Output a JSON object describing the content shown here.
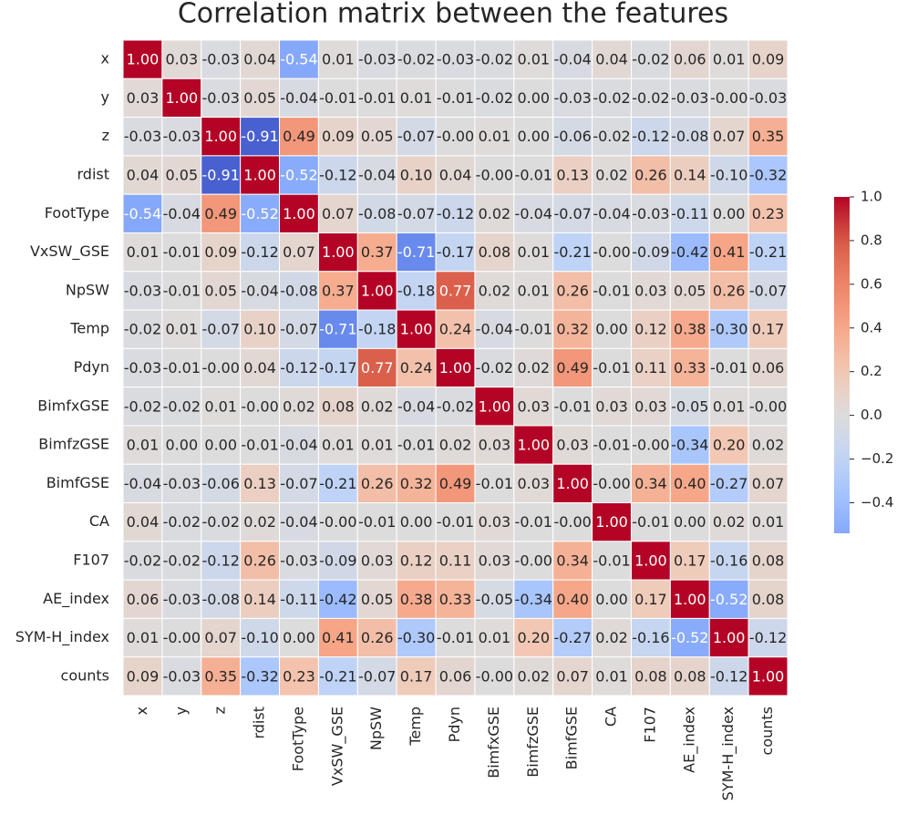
{
  "chart_data": {
    "type": "heatmap",
    "title": "Correlation matrix between the features",
    "rows": [
      "x",
      "y",
      "z",
      "rdist",
      "FootType",
      "VxSW_GSE",
      "NpSW",
      "Temp",
      "Pdyn",
      "BimfxGSE",
      "BimfzGSE",
      "BimfGSE",
      "CA",
      "F107",
      "AE_index",
      "SYM-H_index",
      "counts"
    ],
    "columns": [
      "x",
      "y",
      "z",
      "rdist",
      "FootType",
      "VxSW_GSE",
      "NpSW",
      "Temp",
      "Pdyn",
      "BimfxGSE",
      "BimfzGSE",
      "BimfGSE",
      "CA",
      "F107",
      "AE_index",
      "SYM-H_index",
      "counts"
    ],
    "values": [
      [
        1,
        0.03,
        -0.03,
        0.04,
        -0.54,
        0.01,
        -0.03,
        -0.02,
        -0.03,
        -0.02,
        0.01,
        -0.04,
        0.04,
        -0.02,
        0.06,
        0.01,
        0.09
      ],
      [
        0.03,
        1,
        -0.03,
        0.05,
        -0.04,
        -0.01,
        -0.01,
        0.01,
        -0.01,
        -0.02,
        0,
        -0.03,
        -0.02,
        -0.02,
        -0.03,
        0,
        -0.03
      ],
      [
        -0.03,
        -0.03,
        1,
        -0.91,
        0.49,
        0.09,
        0.05,
        -0.07,
        0,
        0.01,
        0,
        -0.06,
        -0.02,
        -0.12,
        -0.08,
        0.07,
        0.35
      ],
      [
        0.04,
        0.05,
        -0.91,
        1,
        -0.52,
        -0.12,
        -0.04,
        0.1,
        0.04,
        0,
        -0.01,
        0.13,
        0.02,
        0.26,
        0.14,
        -0.1,
        -0.32
      ],
      [
        -0.54,
        -0.04,
        0.49,
        -0.52,
        1,
        0.07,
        -0.08,
        -0.07,
        -0.12,
        0.02,
        -0.04,
        -0.07,
        -0.04,
        -0.03,
        -0.11,
        0,
        0.23
      ],
      [
        0.01,
        -0.01,
        0.09,
        -0.12,
        0.07,
        1,
        0.37,
        -0.71,
        -0.17,
        0.08,
        0.01,
        -0.21,
        0,
        -0.09,
        -0.42,
        0.41,
        -0.21
      ],
      [
        -0.03,
        -0.01,
        0.05,
        -0.04,
        -0.08,
        0.37,
        1,
        -0.18,
        0.77,
        0.02,
        0.01,
        0.26,
        -0.01,
        0.03,
        0.05,
        0.26,
        -0.07
      ],
      [
        -0.02,
        0.01,
        -0.07,
        0.1,
        -0.07,
        -0.71,
        -0.18,
        1,
        0.24,
        -0.04,
        -0.01,
        0.32,
        0,
        0.12,
        0.38,
        -0.3,
        0.17
      ],
      [
        -0.03,
        -0.01,
        0,
        0.04,
        -0.12,
        -0.17,
        0.77,
        0.24,
        1,
        -0.02,
        0.02,
        0.49,
        -0.01,
        0.11,
        0.33,
        -0.01,
        0.06
      ],
      [
        -0.02,
        -0.02,
        0.01,
        0,
        0.02,
        0.08,
        0.02,
        -0.04,
        -0.02,
        1,
        0.03,
        -0.01,
        0.03,
        0.03,
        -0.05,
        0.01,
        0
      ],
      [
        0.01,
        0,
        0,
        -0.01,
        -0.04,
        0.01,
        0.01,
        -0.01,
        0.02,
        0.03,
        1,
        0.03,
        -0.01,
        0,
        -0.34,
        0.2,
        0.02
      ],
      [
        -0.04,
        -0.03,
        -0.06,
        0.13,
        -0.07,
        -0.21,
        0.26,
        0.32,
        0.49,
        -0.01,
        0.03,
        1,
        0,
        0.34,
        0.4,
        -0.27,
        0.07
      ],
      [
        0.04,
        -0.02,
        -0.02,
        0.02,
        -0.04,
        0,
        -0.01,
        0,
        -0.01,
        0.03,
        -0.01,
        0,
        1,
        -0.01,
        0,
        0.02,
        0.01
      ],
      [
        -0.02,
        -0.02,
        -0.12,
        0.26,
        -0.03,
        -0.09,
        0.03,
        0.12,
        0.11,
        0.03,
        0,
        0.34,
        -0.01,
        1,
        0.17,
        -0.16,
        0.08
      ],
      [
        0.06,
        -0.03,
        -0.08,
        0.14,
        -0.11,
        -0.42,
        0.05,
        0.38,
        0.33,
        -0.05,
        -0.34,
        0.4,
        0,
        0.17,
        1,
        -0.52,
        0.08
      ],
      [
        0.01,
        0,
        0.07,
        -0.1,
        0,
        0.41,
        0.26,
        -0.3,
        -0.01,
        0.01,
        0.2,
        -0.27,
        0.02,
        -0.16,
        -0.52,
        1,
        -0.12
      ],
      [
        0.09,
        -0.03,
        0.35,
        -0.32,
        0.23,
        -0.21,
        -0.07,
        0.17,
        0.06,
        0,
        0.02,
        0.07,
        0.01,
        0.08,
        0.08,
        -0.12,
        1
      ]
    ],
    "value_labels": [
      [
        "1.00",
        "0.03",
        "-0.03",
        "0.04",
        "-0.54",
        "0.01",
        "-0.03",
        "-0.02",
        "-0.03",
        "-0.02",
        "0.01",
        "-0.04",
        "0.04",
        "-0.02",
        "0.06",
        "0.01",
        "0.09"
      ],
      [
        "0.03",
        "1.00",
        "-0.03",
        "0.05",
        "-0.04",
        "-0.01",
        "-0.01",
        "0.01",
        "-0.01",
        "-0.02",
        "0.00",
        "-0.03",
        "-0.02",
        "-0.02",
        "-0.03",
        "-0.00",
        "-0.03"
      ],
      [
        "-0.03",
        "-0.03",
        "1.00",
        "-0.91",
        "0.49",
        "0.09",
        "0.05",
        "-0.07",
        "-0.00",
        "0.01",
        "0.00",
        "-0.06",
        "-0.02",
        "-0.12",
        "-0.08",
        "0.07",
        "0.35"
      ],
      [
        "0.04",
        "0.05",
        "-0.91",
        "1.00",
        "-0.52",
        "-0.12",
        "-0.04",
        "0.10",
        "0.04",
        "-0.00",
        "-0.01",
        "0.13",
        "0.02",
        "0.26",
        "0.14",
        "-0.10",
        "-0.32"
      ],
      [
        "-0.54",
        "-0.04",
        "0.49",
        "-0.52",
        "1.00",
        "0.07",
        "-0.08",
        "-0.07",
        "-0.12",
        "0.02",
        "-0.04",
        "-0.07",
        "-0.04",
        "-0.03",
        "-0.11",
        "0.00",
        "0.23"
      ],
      [
        "0.01",
        "-0.01",
        "0.09",
        "-0.12",
        "0.07",
        "1.00",
        "0.37",
        "-0.71",
        "-0.17",
        "0.08",
        "0.01",
        "-0.21",
        "-0.00",
        "-0.09",
        "-0.42",
        "0.41",
        "-0.21"
      ],
      [
        "-0.03",
        "-0.01",
        "0.05",
        "-0.04",
        "-0.08",
        "0.37",
        "1.00",
        "-0.18",
        "0.77",
        "0.02",
        "0.01",
        "0.26",
        "-0.01",
        "0.03",
        "0.05",
        "0.26",
        "-0.07"
      ],
      [
        "-0.02",
        "0.01",
        "-0.07",
        "0.10",
        "-0.07",
        "-0.71",
        "-0.18",
        "1.00",
        "0.24",
        "-0.04",
        "-0.01",
        "0.32",
        "0.00",
        "0.12",
        "0.38",
        "-0.30",
        "0.17"
      ],
      [
        "-0.03",
        "-0.01",
        "-0.00",
        "0.04",
        "-0.12",
        "-0.17",
        "0.77",
        "0.24",
        "1.00",
        "-0.02",
        "0.02",
        "0.49",
        "-0.01",
        "0.11",
        "0.33",
        "-0.01",
        "0.06"
      ],
      [
        "-0.02",
        "-0.02",
        "0.01",
        "-0.00",
        "0.02",
        "0.08",
        "0.02",
        "-0.04",
        "-0.02",
        "1.00",
        "0.03",
        "-0.01",
        "0.03",
        "0.03",
        "-0.05",
        "0.01",
        "-0.00"
      ],
      [
        "0.01",
        "0.00",
        "0.00",
        "-0.01",
        "-0.04",
        "0.01",
        "0.01",
        "-0.01",
        "0.02",
        "0.03",
        "1.00",
        "0.03",
        "-0.01",
        "-0.00",
        "-0.34",
        "0.20",
        "0.02"
      ],
      [
        "-0.04",
        "-0.03",
        "-0.06",
        "0.13",
        "-0.07",
        "-0.21",
        "0.26",
        "0.32",
        "0.49",
        "-0.01",
        "0.03",
        "1.00",
        "-0.00",
        "0.34",
        "0.40",
        "-0.27",
        "0.07"
      ],
      [
        "0.04",
        "-0.02",
        "-0.02",
        "0.02",
        "-0.04",
        "-0.00",
        "-0.01",
        "0.00",
        "-0.01",
        "0.03",
        "-0.01",
        "-0.00",
        "1.00",
        "-0.01",
        "0.00",
        "0.02",
        "0.01"
      ],
      [
        "-0.02",
        "-0.02",
        "-0.12",
        "0.26",
        "-0.03",
        "-0.09",
        "0.03",
        "0.12",
        "0.11",
        "0.03",
        "-0.00",
        "0.34",
        "-0.01",
        "1.00",
        "0.17",
        "-0.16",
        "0.08"
      ],
      [
        "0.06",
        "-0.03",
        "-0.08",
        "0.14",
        "-0.11",
        "-0.42",
        "0.05",
        "0.38",
        "0.33",
        "-0.05",
        "-0.34",
        "0.40",
        "0.00",
        "0.17",
        "1.00",
        "-0.52",
        "0.08"
      ],
      [
        "0.01",
        "-0.00",
        "0.07",
        "-0.10",
        "0.00",
        "0.41",
        "0.26",
        "-0.30",
        "-0.01",
        "0.01",
        "0.20",
        "-0.27",
        "0.02",
        "-0.16",
        "-0.52",
        "1.00",
        "-0.12"
      ],
      [
        "0.09",
        "-0.03",
        "0.35",
        "-0.32",
        "0.23",
        "-0.21",
        "-0.07",
        "0.17",
        "0.06",
        "-0.00",
        "0.02",
        "0.07",
        "0.01",
        "0.08",
        "0.08",
        "-0.12",
        "1.00"
      ]
    ],
    "colormap": "coolwarm",
    "center": 0,
    "clim": [
      -0.54,
      1
    ],
    "cticks": [
      {
        "value": 1,
        "label": "1.0"
      },
      0.8,
      0.6,
      0.4,
      0.2,
      {
        "value": 0,
        "label": "0.0"
      },
      {
        "value": -0.2,
        "label": "−0.2"
      },
      {
        "value": -0.4,
        "label": "−0.4"
      }
    ]
  }
}
